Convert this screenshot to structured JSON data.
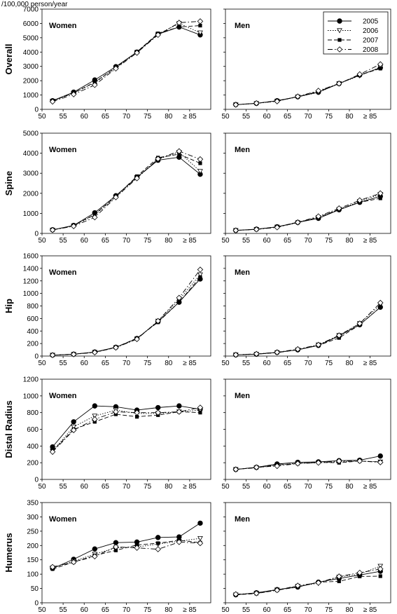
{
  "figure": {
    "unit_label": "/100,000 person/year",
    "series_styles": [
      {
        "name": "2005",
        "marker": "circle-filled",
        "dash": "solid"
      },
      {
        "name": "2006",
        "marker": "triangle-down-open",
        "dash": "dotted"
      },
      {
        "name": "2007",
        "marker": "square-filled",
        "dash": "dashed"
      },
      {
        "name": "2008",
        "marker": "diamond-open",
        "dash": "dash-dot"
      }
    ],
    "legend_position": "top-right of Overall Men panel"
  },
  "chart_data": [
    {
      "type": "line",
      "row": "Overall",
      "panel": "Women",
      "x": [
        52.5,
        57.5,
        62.5,
        67.5,
        72.5,
        77.5,
        82.5,
        87.5
      ],
      "xticks": [
        "50",
        "55",
        "60",
        "65",
        "70",
        "75",
        "80",
        "≥ 85"
      ],
      "ylim": [
        0,
        7000
      ],
      "yticks": [
        0,
        1000,
        2000,
        3000,
        4000,
        5000,
        6000,
        7000
      ],
      "series": [
        {
          "name": "2005",
          "values": [
            600,
            1200,
            2050,
            2980,
            4000,
            5250,
            5750,
            5200
          ]
        },
        {
          "name": "2006",
          "values": [
            580,
            1130,
            1850,
            2900,
            3980,
            5250,
            6000,
            5350
          ]
        },
        {
          "name": "2007",
          "values": [
            590,
            1150,
            1900,
            2920,
            4020,
            5300,
            5750,
            5850
          ]
        },
        {
          "name": "2008",
          "values": [
            540,
            1050,
            1700,
            2850,
            3950,
            5200,
            6050,
            6150
          ]
        }
      ]
    },
    {
      "type": "line",
      "row": "Overall",
      "panel": "Men",
      "x": [
        52.5,
        57.5,
        62.5,
        67.5,
        72.5,
        77.5,
        82.5,
        87.5
      ],
      "xticks": [
        "50",
        "55",
        "60",
        "65",
        "70",
        "75",
        "80",
        "≥ 85"
      ],
      "ylim": [
        0,
        7000
      ],
      "series": [
        {
          "name": "2005",
          "values": [
            330,
            420,
            600,
            880,
            1200,
            1800,
            2400,
            2900
          ]
        },
        {
          "name": "2006",
          "values": [
            320,
            410,
            580,
            870,
            1180,
            1800,
            2350,
            2950
          ]
        },
        {
          "name": "2007",
          "values": [
            330,
            420,
            600,
            880,
            1250,
            1800,
            2400,
            2850
          ]
        },
        {
          "name": "2008",
          "values": [
            320,
            430,
            560,
            900,
            1300,
            1800,
            2450,
            3150
          ]
        }
      ]
    },
    {
      "type": "line",
      "row": "Spine",
      "panel": "Women",
      "x": [
        52.5,
        57.5,
        62.5,
        67.5,
        72.5,
        77.5,
        82.5,
        87.5
      ],
      "xticks": [
        "50",
        "55",
        "60",
        "65",
        "70",
        "75",
        "80",
        "≥ 85"
      ],
      "ylim": [
        0,
        5000
      ],
      "yticks": [
        0,
        1000,
        2000,
        3000,
        4000,
        5000
      ],
      "series": [
        {
          "name": "2005",
          "values": [
            180,
            400,
            1030,
            1880,
            2800,
            3650,
            3800,
            2950
          ]
        },
        {
          "name": "2006",
          "values": [
            170,
            380,
            920,
            1820,
            2800,
            3700,
            4050,
            3100
          ]
        },
        {
          "name": "2007",
          "values": [
            180,
            390,
            950,
            1850,
            2850,
            3780,
            3950,
            3500
          ]
        },
        {
          "name": "2008",
          "values": [
            170,
            360,
            800,
            1800,
            2750,
            3720,
            4100,
            3700
          ]
        }
      ]
    },
    {
      "type": "line",
      "row": "Spine",
      "panel": "Men",
      "x": [
        52.5,
        57.5,
        62.5,
        67.5,
        72.5,
        77.5,
        82.5,
        87.5
      ],
      "xticks": [
        "50",
        "55",
        "60",
        "65",
        "70",
        "75",
        "80",
        "≥ 85"
      ],
      "ylim": [
        0,
        5000
      ],
      "series": [
        {
          "name": "2005",
          "values": [
            150,
            210,
            330,
            550,
            750,
            1180,
            1550,
            1850
          ]
        },
        {
          "name": "2006",
          "values": [
            150,
            200,
            320,
            530,
            800,
            1200,
            1600,
            1950
          ]
        },
        {
          "name": "2007",
          "values": [
            150,
            210,
            330,
            560,
            800,
            1200,
            1550,
            1750
          ]
        },
        {
          "name": "2008",
          "values": [
            150,
            200,
            300,
            550,
            850,
            1250,
            1650,
            2000
          ]
        }
      ]
    },
    {
      "type": "line",
      "row": "Hip",
      "panel": "Women",
      "x": [
        52.5,
        57.5,
        62.5,
        67.5,
        72.5,
        77.5,
        82.5,
        87.5
      ],
      "xticks": [
        "50",
        "55",
        "60",
        "65",
        "70",
        "75",
        "80",
        "≥ 85"
      ],
      "ylim": [
        0,
        1600
      ],
      "yticks": [
        0,
        200,
        400,
        600,
        800,
        1000,
        1200,
        1400,
        1600
      ],
      "series": [
        {
          "name": "2005",
          "values": [
            15,
            30,
            65,
            140,
            280,
            550,
            860,
            1230
          ]
        },
        {
          "name": "2006",
          "values": [
            15,
            28,
            60,
            135,
            275,
            560,
            900,
            1300
          ]
        },
        {
          "name": "2007",
          "values": [
            15,
            30,
            62,
            140,
            285,
            540,
            860,
            1260
          ]
        },
        {
          "name": "2008",
          "values": [
            15,
            28,
            58,
            135,
            270,
            560,
            930,
            1380
          ]
        }
      ]
    },
    {
      "type": "line",
      "row": "Hip",
      "panel": "Men",
      "x": [
        52.5,
        57.5,
        62.5,
        67.5,
        72.5,
        77.5,
        82.5,
        87.5
      ],
      "xticks": [
        "50",
        "55",
        "60",
        "65",
        "70",
        "75",
        "80",
        "≥ 85"
      ],
      "ylim": [
        0,
        1600
      ],
      "series": [
        {
          "name": "2005",
          "values": [
            20,
            30,
            60,
            100,
            170,
            320,
            500,
            780
          ]
        },
        {
          "name": "2006",
          "values": [
            20,
            30,
            55,
            100,
            180,
            330,
            520,
            820
          ]
        },
        {
          "name": "2007",
          "values": [
            20,
            30,
            55,
            100,
            170,
            290,
            500,
            780
          ]
        },
        {
          "name": "2008",
          "values": [
            20,
            35,
            60,
            110,
            180,
            330,
            520,
            850
          ]
        }
      ]
    },
    {
      "type": "line",
      "row": "Distal Radius",
      "panel": "Women",
      "x": [
        52.5,
        57.5,
        62.5,
        67.5,
        72.5,
        77.5,
        82.5,
        87.5
      ],
      "xticks": [
        "50",
        "55",
        "60",
        "65",
        "70",
        "75",
        "80",
        "≥ 85"
      ],
      "ylim": [
        0,
        1200
      ],
      "yticks": [
        0,
        200,
        400,
        600,
        800,
        1000,
        1200
      ],
      "series": [
        {
          "name": "2005",
          "values": [
            390,
            690,
            880,
            870,
            830,
            860,
            880,
            840
          ]
        },
        {
          "name": "2006",
          "values": [
            340,
            630,
            760,
            830,
            790,
            790,
            810,
            830
          ]
        },
        {
          "name": "2007",
          "values": [
            340,
            600,
            690,
            780,
            750,
            770,
            810,
            800
          ]
        },
        {
          "name": "2008",
          "values": [
            330,
            590,
            720,
            810,
            800,
            800,
            810,
            860
          ]
        }
      ]
    },
    {
      "type": "line",
      "row": "Distal Radius",
      "panel": "Men",
      "x": [
        52.5,
        57.5,
        62.5,
        67.5,
        72.5,
        77.5,
        82.5,
        87.5
      ],
      "xticks": [
        "50",
        "55",
        "60",
        "65",
        "70",
        "75",
        "80",
        "≥ 85"
      ],
      "ylim": [
        0,
        1200
      ],
      "series": [
        {
          "name": "2005",
          "values": [
            120,
            145,
            185,
            205,
            210,
            225,
            230,
            280
          ]
        },
        {
          "name": "2006",
          "values": [
            120,
            140,
            170,
            195,
            200,
            210,
            220,
            210
          ]
        },
        {
          "name": "2007",
          "values": [
            120,
            140,
            175,
            190,
            205,
            200,
            220,
            210
          ]
        },
        {
          "name": "2008",
          "values": [
            120,
            145,
            160,
            190,
            200,
            220,
            220,
            205
          ]
        }
      ]
    },
    {
      "type": "line",
      "row": "Humerus",
      "panel": "Women",
      "x": [
        52.5,
        57.5,
        62.5,
        67.5,
        72.5,
        77.5,
        82.5,
        87.5
      ],
      "xticks": [
        "50",
        "55",
        "60",
        "65",
        "70",
        "75",
        "80",
        "≥ 85"
      ],
      "ylim": [
        0,
        350
      ],
      "yticks": [
        0,
        50,
        100,
        150,
        200,
        250,
        300,
        350
      ],
      "series": [
        {
          "name": "2005",
          "values": [
            120,
            152,
            188,
            210,
            212,
            228,
            230,
            278
          ]
        },
        {
          "name": "2006",
          "values": [
            122,
            145,
            170,
            192,
            195,
            205,
            215,
            225
          ]
        },
        {
          "name": "2007",
          "values": [
            118,
            142,
            165,
            183,
            202,
            208,
            218,
            210
          ]
        },
        {
          "name": "2008",
          "values": [
            125,
            142,
            162,
            195,
            192,
            187,
            212,
            208
          ]
        }
      ]
    },
    {
      "type": "line",
      "row": "Humerus",
      "panel": "Men",
      "x": [
        52.5,
        57.5,
        62.5,
        67.5,
        72.5,
        77.5,
        82.5,
        87.5
      ],
      "xticks": [
        "50",
        "55",
        "60",
        "65",
        "70",
        "75",
        "80",
        "≥ 85"
      ],
      "ylim": [
        0,
        350
      ],
      "series": [
        {
          "name": "2005",
          "values": [
            28,
            35,
            46,
            55,
            72,
            85,
            97,
            110
          ]
        },
        {
          "name": "2006",
          "values": [
            28,
            34,
            45,
            58,
            68,
            90,
            100,
            128
          ]
        },
        {
          "name": "2007",
          "values": [
            28,
            32,
            44,
            55,
            72,
            75,
            92,
            93
          ]
        },
        {
          "name": "2008",
          "values": [
            30,
            33,
            44,
            60,
            70,
            92,
            105,
            118
          ]
        }
      ]
    }
  ]
}
